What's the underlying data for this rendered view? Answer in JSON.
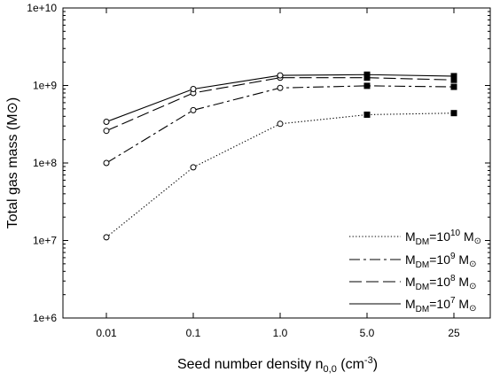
{
  "chart_data": {
    "type": "line",
    "xlabel": {
      "main": "Seed number density n",
      "sub": "0,0",
      "unit_open": " (cm",
      "unit_sup": "-3",
      "unit_close": ")"
    },
    "ylabel": {
      "main": "Total gas mass (M",
      "symbol": "⊙",
      "close": ")"
    },
    "y_scale": "log",
    "ylim": [
      1000000,
      10000000000
    ],
    "y_ticks": [
      {
        "value": 1000000,
        "label": "1e+6"
      },
      {
        "value": 10000000,
        "label": "1e+7"
      },
      {
        "value": 100000000,
        "label": "1e+8"
      },
      {
        "value": 1000000000,
        "label": "1e+9"
      },
      {
        "value": 10000000000,
        "label": "1e+10"
      }
    ],
    "categories": [
      "0.01",
      "0.1",
      "1.0",
      "5.0",
      "25"
    ],
    "legend_position": "bottom-right",
    "series": [
      {
        "name": "10^10",
        "legend": {
          "pre": "M",
          "sub": "DM",
          "mid": "=10",
          "sup": "10",
          "post": " M",
          "sun": "⊙"
        },
        "style": "dotted",
        "values": [
          11000000,
          88000000,
          320000000,
          420000000,
          440000000
        ],
        "markers": [
          "open",
          "open",
          "open",
          "filled",
          "filled"
        ]
      },
      {
        "name": "10^9",
        "legend": {
          "pre": "M",
          "sub": "DM",
          "mid": "=10",
          "sup": "9",
          "post": " M",
          "sun": "⊙"
        },
        "style": "dashdot",
        "values": [
          100000000,
          480000000,
          930000000,
          990000000,
          960000000
        ],
        "markers": [
          "open",
          "open",
          "open",
          "filled",
          "filled"
        ]
      },
      {
        "name": "10^8",
        "legend": {
          "pre": "M",
          "sub": "DM",
          "mid": "=10",
          "sup": "8",
          "post": " M",
          "sun": "⊙"
        },
        "style": "dashed",
        "values": [
          260000000,
          800000000,
          1260000000,
          1260000000,
          1180000000
        ],
        "markers": [
          "open",
          "open",
          "open",
          "filled",
          "filled"
        ]
      },
      {
        "name": "10^7",
        "legend": {
          "pre": "M",
          "sub": "DM",
          "mid": "=10",
          "sup": "7",
          "post": " M",
          "sun": "⊙"
        },
        "style": "solid",
        "values": [
          340000000,
          900000000,
          1350000000,
          1380000000,
          1320000000
        ],
        "markers": [
          "open",
          "open",
          "open",
          "filled",
          "filled"
        ]
      }
    ]
  }
}
